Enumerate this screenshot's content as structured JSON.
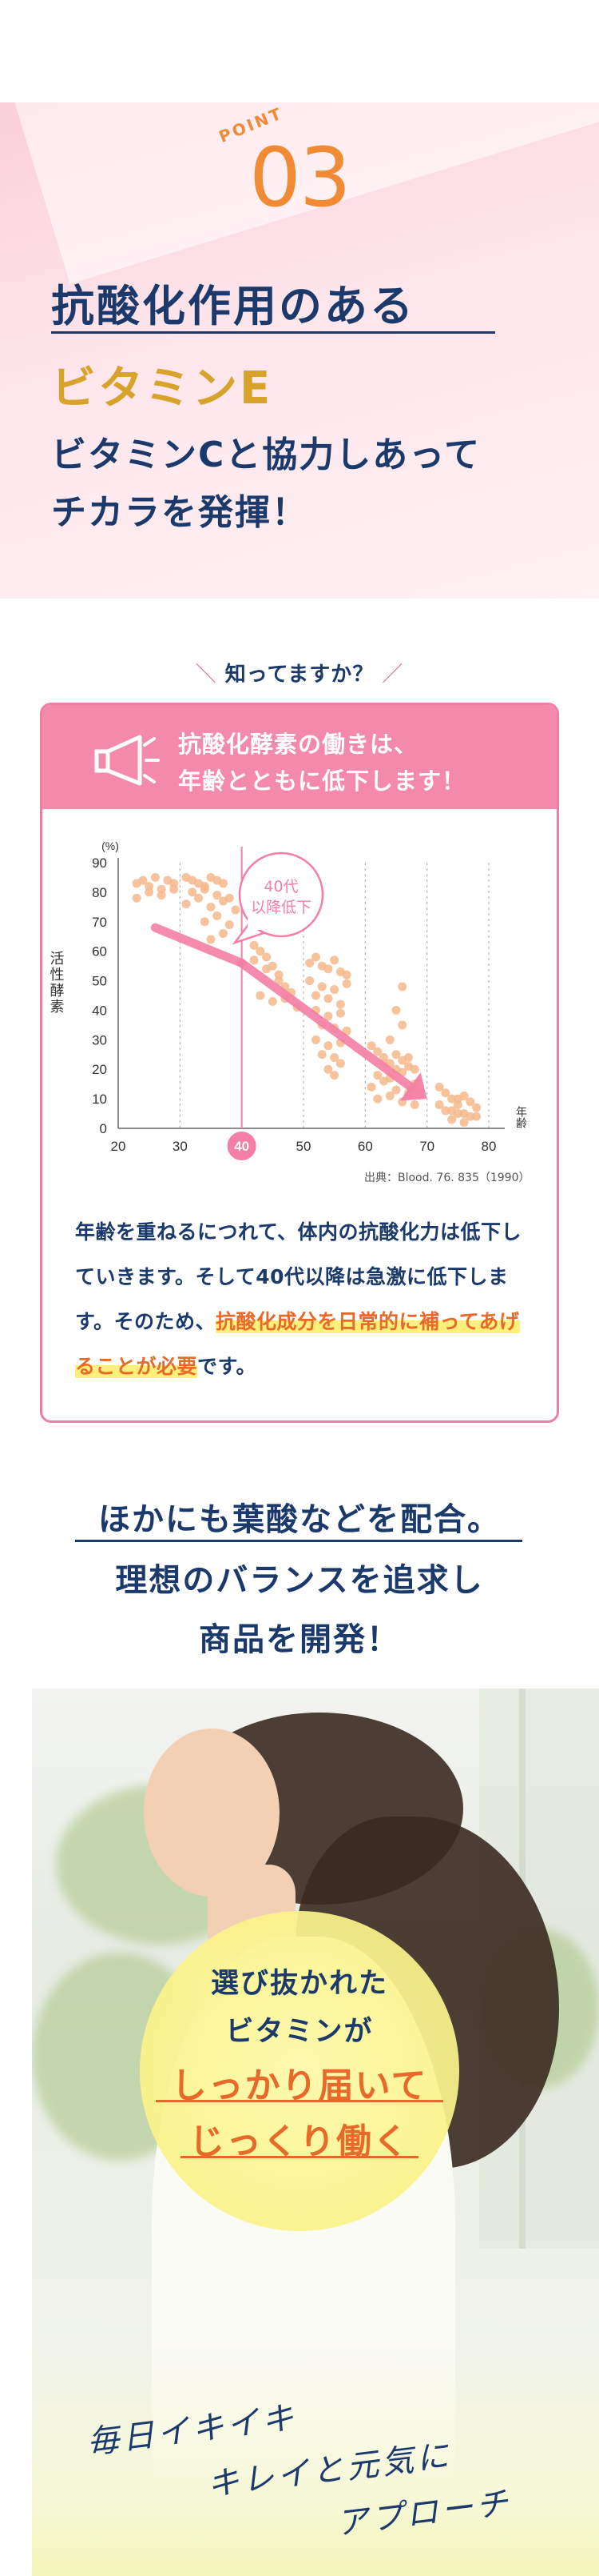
{
  "hero": {
    "point_word": "POINT",
    "point_number": "03",
    "line1": "抗酸化作用のある",
    "line2": "ビタミンE",
    "line3": "ビタミンCと協力しあって",
    "line4": "チカラを発揮！"
  },
  "know": {
    "title": "知ってますか？",
    "title_left": "＼",
    "title_right": "／",
    "head_line1": "抗酸化酵素の働きは、",
    "head_line2": "年齢とともに低下します！",
    "source": "出典：Blood. 76. 835（1990）",
    "body_before": "年齢を重ねるにつれて、体内の抗酸化力は低下していきます。そして40代以降は急激に低下します。そのため、",
    "body_highlight": "抗酸化成分を日常的に補ってあげることが必要",
    "body_after": "です。"
  },
  "chart_data": {
    "type": "scatter",
    "title": "",
    "xlabel": "年齢",
    "ylabel": "活性酵素",
    "yunit": "(%)",
    "xlim": [
      20,
      80
    ],
    "ylim": [
      0,
      90
    ],
    "x_ticks": [
      20,
      30,
      40,
      50,
      60,
      70,
      80
    ],
    "y_ticks": [
      0,
      10,
      20,
      30,
      40,
      50,
      60,
      70,
      80,
      90
    ],
    "highlight_x": 40,
    "annotation": "40代以降低下",
    "grid": "vertical dashed",
    "color": "#f4b98c",
    "arrow_color": "#f47fa4",
    "trend": [
      [
        26,
        68
      ],
      [
        40,
        56
      ],
      [
        70,
        10
      ]
    ],
    "x": [
      23,
      24,
      25,
      26,
      27,
      28,
      29,
      23,
      25,
      27,
      29,
      31,
      32,
      33,
      34,
      35,
      36,
      37,
      32,
      34,
      36,
      38,
      31,
      33,
      35,
      37,
      39,
      34,
      36,
      38,
      35,
      37,
      42,
      43,
      44,
      45,
      46,
      42,
      44,
      46,
      47,
      48,
      43,
      45,
      47,
      49,
      51,
      52,
      53,
      54,
      55,
      56,
      57,
      51,
      53,
      55,
      57,
      52,
      54,
      56,
      52,
      54,
      56,
      53,
      55,
      57,
      52,
      54,
      56,
      53,
      55,
      54,
      56,
      55,
      61,
      62,
      63,
      64,
      65,
      66,
      67,
      68,
      62,
      64,
      66,
      68,
      61,
      63,
      65,
      67,
      62,
      64,
      66,
      68,
      63,
      65,
      67,
      64,
      66,
      65,
      66,
      72,
      73,
      74,
      75,
      76,
      77,
      78,
      73,
      75,
      77,
      74,
      76,
      72,
      74,
      76,
      78,
      75
    ],
    "y": [
      83,
      84,
      82,
      85,
      81,
      84,
      83,
      78,
      80,
      79,
      81,
      85,
      84,
      83,
      82,
      85,
      84,
      83,
      80,
      81,
      79,
      78,
      76,
      78,
      75,
      77,
      74,
      70,
      72,
      69,
      64,
      66,
      62,
      60,
      58,
      55,
      52,
      57,
      54,
      50,
      48,
      46,
      45,
      43,
      44,
      41,
      56,
      58,
      55,
      54,
      57,
      53,
      52,
      50,
      48,
      47,
      49,
      45,
      44,
      42,
      40,
      38,
      39,
      35,
      34,
      33,
      30,
      28,
      29,
      25,
      24,
      20,
      22,
      18,
      28,
      26,
      24,
      22,
      25,
      23,
      21,
      20,
      18,
      17,
      19,
      15,
      14,
      16,
      13,
      12,
      10,
      11,
      9,
      8,
      22,
      20,
      24,
      30,
      35,
      40,
      48,
      14,
      12,
      10,
      8,
      11,
      9,
      7,
      6,
      5,
      4,
      3,
      2,
      8,
      6,
      5,
      4,
      10
    ]
  },
  "section3": {
    "line1": "ほかにも葉酸などを配合。",
    "line2": "理想のバランスを追求し",
    "line3": "商品を開発！"
  },
  "circle": {
    "line1": "選び抜かれた",
    "line2": "ビタミンが",
    "line3": "しっかり届いて",
    "line4": "じっくり働く"
  },
  "handwriting": {
    "line1": "毎日イキイキ",
    "line2": "キレイと元気に",
    "line3": "アプローチ"
  },
  "colors": {
    "navy": "#1b3a6b",
    "orange": "#e86a2a",
    "pink": "#f48aa9",
    "gold": "#d8a32a"
  }
}
